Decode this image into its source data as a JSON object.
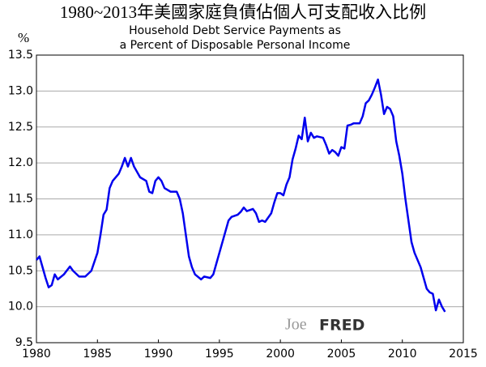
{
  "chart_data": {
    "type": "line",
    "title": "1980~2013年美國家庭負債佔個人可支配收入比例",
    "subtitle": [
      "Household Debt Service Payments as",
      "a Percent of Disposable Personal Income"
    ],
    "y_label": "%",
    "watermark": [
      "Joe",
      "FRED"
    ],
    "x": [
      1980.0,
      1980.25,
      1980.75,
      1981.0,
      1981.25,
      1981.5,
      1981.75,
      1982.25,
      1982.75,
      1983.0,
      1983.5,
      1984.0,
      1984.5,
      1985.0,
      1985.25,
      1985.5,
      1985.75,
      1986.0,
      1986.25,
      1986.75,
      1987.0,
      1987.25,
      1987.5,
      1987.75,
      1988.0,
      1988.5,
      1989.0,
      1989.25,
      1989.5,
      1989.75,
      1990.0,
      1990.25,
      1990.5,
      1991.0,
      1991.5,
      1991.75,
      1992.0,
      1992.25,
      1992.5,
      1992.75,
      1993.0,
      1993.5,
      1993.75,
      1994.25,
      1994.5,
      1994.75,
      1995.0,
      1995.5,
      1995.75,
      1996.0,
      1996.5,
      1996.75,
      1997.0,
      1997.25,
      1997.75,
      1998.0,
      1998.25,
      1998.5,
      1998.75,
      1999.25,
      1999.5,
      1999.75,
      2000.0,
      2000.25,
      2000.5,
      2000.75,
      2001.0,
      2001.25,
      2001.5,
      2001.75,
      2002.0,
      2002.25,
      2002.5,
      2002.75,
      2003.0,
      2003.5,
      2003.75,
      2004.0,
      2004.25,
      2004.5,
      2004.75,
      2005.0,
      2005.25,
      2005.5,
      2005.75,
      2006.0,
      2006.5,
      2006.75,
      2007.0,
      2007.25,
      2007.5,
      2007.75,
      2008.0,
      2008.25,
      2008.5,
      2008.75,
      2009.0,
      2009.25,
      2009.5,
      2009.75,
      2010.0,
      2010.25,
      2010.5,
      2010.75,
      2011.0,
      2011.5,
      2011.75,
      2012.0,
      2012.25,
      2012.5,
      2012.75,
      2013.0,
      2013.25,
      2013.5
    ],
    "series": [
      {
        "name": "Household Debt Service Payments",
        "color": "#0000ee",
        "values": [
          10.65,
          10.7,
          10.4,
          10.27,
          10.3,
          10.45,
          10.38,
          10.45,
          10.56,
          10.5,
          10.42,
          10.42,
          10.5,
          10.75,
          11.0,
          11.28,
          11.35,
          11.65,
          11.75,
          11.85,
          11.95,
          12.07,
          11.95,
          12.07,
          11.95,
          11.8,
          11.75,
          11.6,
          11.58,
          11.75,
          11.8,
          11.75,
          11.65,
          11.6,
          11.6,
          11.5,
          11.3,
          11.0,
          10.7,
          10.55,
          10.45,
          10.38,
          10.42,
          10.4,
          10.45,
          10.6,
          10.75,
          11.05,
          11.2,
          11.25,
          11.28,
          11.32,
          11.38,
          11.33,
          11.36,
          11.3,
          11.18,
          11.2,
          11.18,
          11.3,
          11.45,
          11.58,
          11.58,
          11.55,
          11.7,
          11.8,
          12.05,
          12.2,
          12.38,
          12.33,
          12.63,
          12.3,
          12.42,
          12.35,
          12.37,
          12.35,
          12.25,
          12.13,
          12.18,
          12.15,
          12.1,
          12.22,
          12.2,
          12.52,
          12.53,
          12.55,
          12.55,
          12.65,
          12.83,
          12.87,
          12.95,
          13.05,
          13.16,
          12.95,
          12.68,
          12.78,
          12.75,
          12.65,
          12.3,
          12.1,
          11.85,
          11.5,
          11.2,
          10.9,
          10.75,
          10.55,
          10.4,
          10.25,
          10.2,
          10.18,
          9.95,
          10.1,
          10.0,
          9.93
        ]
      }
    ],
    "xlim": [
      1980,
      2015
    ],
    "xticks": [
      1980,
      1985,
      1990,
      1995,
      2000,
      2005,
      2010,
      2015
    ],
    "ylim": [
      9.5,
      13.5
    ],
    "yticks": [
      9.5,
      {
        "value": 10,
        "label": "10.0"
      },
      10.5,
      {
        "value": 11,
        "label": "11.0"
      },
      11.5,
      {
        "value": 12,
        "label": "12.0"
      },
      12.5,
      {
        "value": 13,
        "label": "13.0"
      },
      13.5
    ],
    "grid": true
  }
}
